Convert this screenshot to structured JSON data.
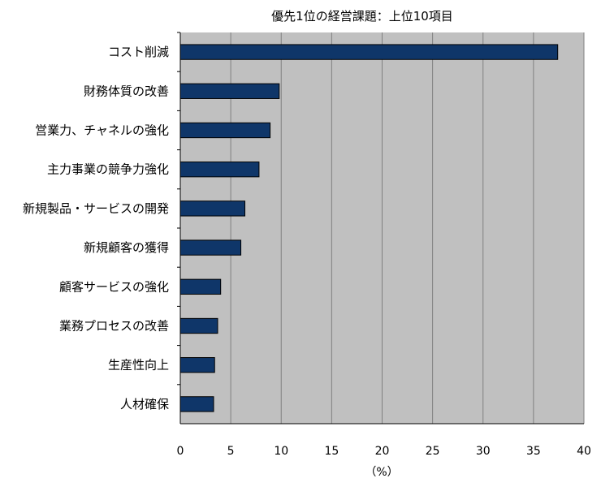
{
  "chart_data": {
    "type": "bar",
    "orientation": "horizontal",
    "title": "優先1位の経営課題：上位10項目",
    "xlabel": "（%）",
    "ylabel": "",
    "categories": [
      "コスト削減",
      "財務体質の改善",
      "営業力、チャネルの強化",
      "主力事業の競争力強化",
      "新規製品・サービスの開発",
      "新規顧客の獲得",
      "顧客サービスの強化",
      "業務プロセスの改善",
      "生産性向上",
      "人材確保"
    ],
    "values": [
      37.4,
      9.8,
      8.9,
      7.8,
      6.4,
      6.0,
      4.0,
      3.7,
      3.4,
      3.3
    ],
    "xlim": [
      0,
      40
    ],
    "xticks": [
      0,
      5,
      10,
      15,
      20,
      25,
      30,
      35,
      40
    ],
    "grid": true,
    "legend": "none",
    "colors": {
      "bar": "#0f3669",
      "plot_background": "#c0c0c0",
      "gridline": "#808080"
    }
  }
}
